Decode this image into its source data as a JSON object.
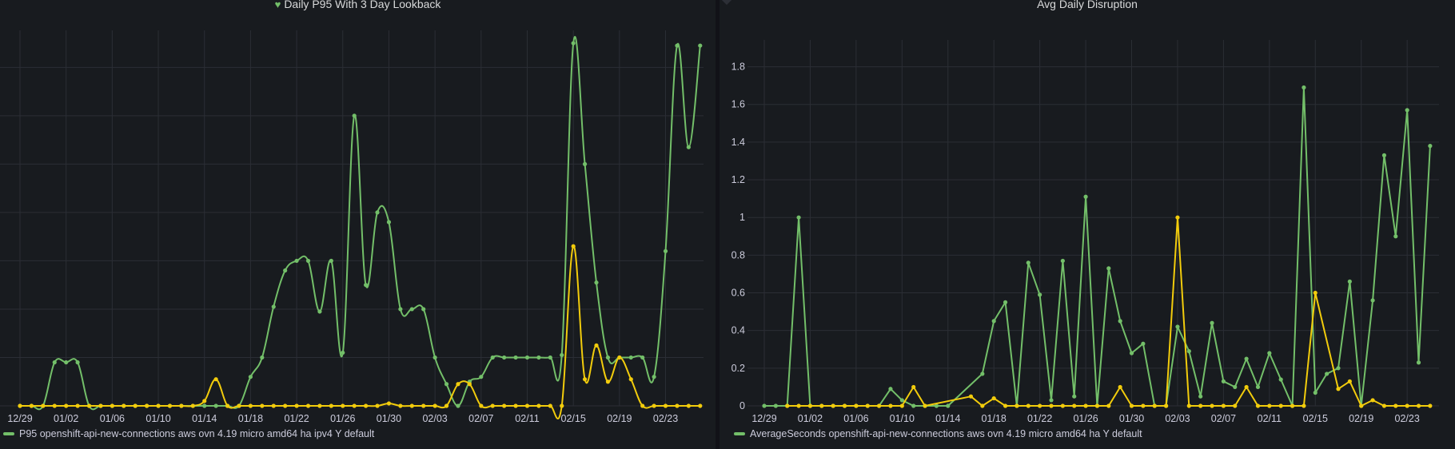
{
  "colors": {
    "green": "#73bf69",
    "yellow": "#f2cc0c",
    "grid": "#2b2e35",
    "axis": "#444851"
  },
  "panels": {
    "left": {
      "title": "Daily P95 With 3 Day Lookback",
      "title_icon": "heart-icon",
      "legend": "P95 openshift-api-new-connections aws ovn 4.19 micro amd64 ha ipv4 Y default"
    },
    "right": {
      "title": "Avg Daily Disruption",
      "legend": "AverageSeconds openshift-api-new-connections aws ovn 4.19 micro amd64 ha Y default"
    }
  },
  "chart_data": [
    {
      "type": "line",
      "title": "Daily P95 With 3 Day Lookback",
      "x_tick_labels": [
        "12/29",
        "01/02",
        "01/06",
        "01/10",
        "01/14",
        "01/18",
        "01/22",
        "01/26",
        "01/30",
        "02/03",
        "02/07",
        "02/11",
        "02/15",
        "02/19",
        "02/23"
      ],
      "y_tick_labels": [],
      "ylim": [
        0,
        7.6
      ],
      "grid": true,
      "legend_position": "bottom-left",
      "x_start": "2024-12-29",
      "series": [
        {
          "name": "P95 openshift-api-new-connections aws ovn 4.19 micro amd64 ha ipv4 Y default",
          "color": "#73bf69",
          "values": [
            0,
            0,
            0,
            0.9,
            0.9,
            0.9,
            0,
            0,
            0,
            0,
            0,
            0,
            0,
            0,
            0,
            0,
            0,
            0,
            0,
            0,
            0.6,
            1.0,
            2.05,
            2.8,
            3.0,
            3.0,
            1.95,
            3.0,
            1.1,
            6.0,
            2.5,
            4.0,
            3.8,
            2.0,
            2.0,
            2.0,
            1.0,
            0.45,
            0,
            0.5,
            0.6,
            1.0,
            1.0,
            1.0,
            1.0,
            1.0,
            1.0,
            1.05,
            7.5,
            5.0,
            2.55,
            1.0,
            1.0,
            1.0,
            1.0,
            0.6,
            3.2,
            7.45,
            5.35,
            7.45
          ]
        },
        {
          "name": "",
          "color": "#f2cc0c",
          "values": [
            0,
            0,
            0,
            0,
            0,
            0,
            0,
            0,
            0,
            0,
            0,
            0,
            0,
            0,
            0,
            0,
            0.1,
            0.55,
            0,
            0,
            0,
            0,
            0,
            0,
            0,
            0,
            0,
            0,
            0,
            0,
            0,
            0,
            0.05,
            0,
            0,
            0,
            0,
            0,
            0.45,
            0.45,
            0,
            0,
            0,
            0,
            0,
            0,
            0,
            0,
            3.3,
            0.55,
            1.25,
            0.5,
            1.0,
            0.55,
            0,
            0,
            0,
            0,
            0,
            0
          ]
        }
      ]
    },
    {
      "type": "line",
      "title": "Avg Daily Disruption",
      "x_tick_labels": [
        "12/29",
        "01/02",
        "01/06",
        "01/10",
        "01/14",
        "01/18",
        "01/22",
        "01/26",
        "01/30",
        "02/03",
        "02/07",
        "02/11",
        "02/15",
        "02/19",
        "02/23"
      ],
      "y_tick_labels": [
        "0",
        "0.2",
        "0.4",
        "0.6",
        "0.8",
        "1",
        "1.2",
        "1.4",
        "1.6",
        "1.8"
      ],
      "ylim": [
        0,
        1.9
      ],
      "grid": true,
      "legend_position": "bottom-left",
      "series": [
        {
          "name": "AverageSeconds openshift-api-new-connections aws ovn 4.19 micro amd64 ha Y default",
          "color": "#73bf69",
          "x": [
            "2024-12-29",
            "2024-12-30",
            "2024-12-31",
            "2025-01-01",
            "2025-01-02",
            "2025-01-03",
            "2025-01-04",
            "2025-01-05",
            "2025-01-06",
            "2025-01-07",
            "2025-01-08",
            "2025-01-09",
            "2025-01-10",
            "2025-01-11",
            "2025-01-12",
            "2025-01-13",
            "2025-01-14",
            "2025-01-17",
            "2025-01-18",
            "2025-01-19",
            "2025-01-20",
            "2025-01-21",
            "2025-01-22",
            "2025-01-23",
            "2025-01-24",
            "2025-01-25",
            "2025-01-26",
            "2025-01-27",
            "2025-01-28",
            "2025-01-29",
            "2025-01-30",
            "2025-01-31",
            "2025-02-01",
            "2025-02-02",
            "2025-02-03",
            "2025-02-04",
            "2025-02-05",
            "2025-02-06",
            "2025-02-07",
            "2025-02-08",
            "2025-02-09",
            "2025-02-10",
            "2025-02-11",
            "2025-02-12",
            "2025-02-13",
            "2025-02-14",
            "2025-02-15",
            "2025-02-16",
            "2025-02-17",
            "2025-02-18",
            "2025-02-19",
            "2025-02-20",
            "2025-02-21",
            "2025-02-22",
            "2025-02-23",
            "2025-02-24",
            "2025-02-25"
          ],
          "values": [
            0,
            0,
            0,
            1.0,
            0,
            0,
            0,
            0,
            0,
            0,
            0,
            0.09,
            0.03,
            0,
            0,
            0,
            0,
            0.17,
            0.45,
            0.55,
            0,
            0.76,
            0.59,
            0.03,
            0.77,
            0.05,
            1.11,
            0,
            0.73,
            0.45,
            0.28,
            0.33,
            0,
            0,
            0.42,
            0.29,
            0.05,
            0.44,
            0.13,
            0.1,
            0.25,
            0.1,
            0.28,
            0.14,
            0,
            1.69,
            0.07,
            0.17,
            0.2,
            0.66,
            0,
            0.56,
            1.33,
            0.9,
            1.57,
            0.23,
            1.38
          ]
        },
        {
          "name": "",
          "color": "#f2cc0c",
          "x": [
            "2024-12-31",
            "2025-01-01",
            "2025-01-02",
            "2025-01-03",
            "2025-01-04",
            "2025-01-05",
            "2025-01-06",
            "2025-01-07",
            "2025-01-08",
            "2025-01-09",
            "2025-01-10",
            "2025-01-11",
            "2025-01-12",
            "2025-01-16",
            "2025-01-17",
            "2025-01-18",
            "2025-01-19",
            "2025-01-20",
            "2025-01-21",
            "2025-01-22",
            "2025-01-23",
            "2025-01-24",
            "2025-01-25",
            "2025-01-26",
            "2025-01-27",
            "2025-01-28",
            "2025-01-29",
            "2025-01-30",
            "2025-01-31",
            "2025-02-01",
            "2025-02-02",
            "2025-02-03",
            "2025-02-04",
            "2025-02-05",
            "2025-02-06",
            "2025-02-07",
            "2025-02-08",
            "2025-02-09",
            "2025-02-10",
            "2025-02-11",
            "2025-02-12",
            "2025-02-13",
            "2025-02-14",
            "2025-02-15",
            "2025-02-17",
            "2025-02-18",
            "2025-02-19",
            "2025-02-20",
            "2025-02-21",
            "2025-02-22",
            "2025-02-23",
            "2025-02-24",
            "2025-02-25"
          ],
          "values": [
            0,
            0,
            0,
            0,
            0,
            0,
            0,
            0,
            0,
            0,
            0,
            0.1,
            0,
            0.05,
            0,
            0.04,
            0,
            0,
            0,
            0,
            0,
            0,
            0,
            0,
            0,
            0,
            0.1,
            0,
            0,
            0,
            0,
            1.0,
            0,
            0,
            0,
            0,
            0,
            0.1,
            0,
            0,
            0,
            0,
            0,
            0.6,
            0.09,
            0.13,
            0,
            0.03,
            0,
            0,
            0,
            0,
            0
          ]
        }
      ]
    }
  ]
}
